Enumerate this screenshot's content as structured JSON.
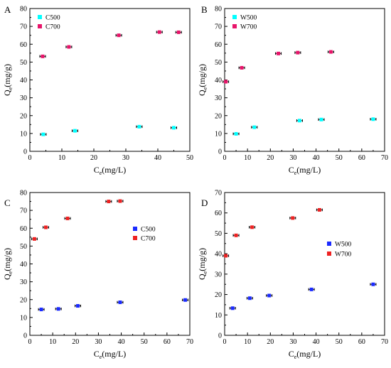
{
  "chart_data": [
    {
      "type": "scatter",
      "panel_label": "A",
      "xlabel_main": "C",
      "xlabel_sub": "e",
      "xlabel_unit": "(mg/L)",
      "ylabel_main": "Q",
      "ylabel_sub": "e",
      "ylabel_unit": "(mg/g)",
      "xlim": [
        0,
        50
      ],
      "ylim": [
        0,
        80
      ],
      "xticks": [
        0,
        10,
        20,
        30,
        40,
        50
      ],
      "yticks": [
        0,
        10,
        20,
        30,
        40,
        50,
        60,
        70,
        80
      ],
      "legend_position": "top-left",
      "series": [
        {
          "name": "C500",
          "color": "#00ffff",
          "x": [
            4.2,
            14.1,
            34.2,
            45.0
          ],
          "y": [
            9.5,
            11.5,
            13.8,
            13.2
          ]
        },
        {
          "name": "C700",
          "color": "#e8146a",
          "x": [
            4.0,
            12.2,
            27.8,
            40.5,
            46.5
          ],
          "y": [
            53.2,
            58.5,
            65.0,
            66.8,
            66.7
          ]
        }
      ]
    },
    {
      "type": "scatter",
      "panel_label": "B",
      "xlabel_main": "C",
      "xlabel_sub": "e",
      "xlabel_unit": "(mg/L)",
      "ylabel_main": "Q",
      "ylabel_sub": "e",
      "ylabel_unit": "(mg/g)",
      "xlim": [
        0,
        70
      ],
      "ylim": [
        0,
        80
      ],
      "xticks": [
        0,
        10,
        20,
        30,
        40,
        50,
        60,
        70
      ],
      "yticks": [
        0,
        10,
        20,
        30,
        40,
        50,
        60,
        70,
        80
      ],
      "legend_position": "top-left",
      "series": [
        {
          "name": "W500",
          "color": "#00ffff",
          "x": [
            5.0,
            13.0,
            32.8,
            42.3,
            65.0
          ],
          "y": [
            9.8,
            13.5,
            17.2,
            17.8,
            18.0
          ]
        },
        {
          "name": "W700",
          "color": "#e8146a",
          "x": [
            0.5,
            7.5,
            23.5,
            32.0,
            46.5
          ],
          "y": [
            39.0,
            46.8,
            54.8,
            55.3,
            55.7
          ]
        }
      ]
    },
    {
      "type": "scatter",
      "panel_label": "C",
      "xlabel_main": "C",
      "xlabel_sub": "e",
      "xlabel_unit": "(mg/L)",
      "ylabel_main": "Q",
      "ylabel_sub": "e",
      "ylabel_unit": "(mg/g)",
      "xlim": [
        0,
        70
      ],
      "ylim": [
        0,
        80
      ],
      "xticks": [
        0,
        10,
        20,
        30,
        40,
        50,
        60,
        70
      ],
      "yticks": [
        0,
        10,
        20,
        30,
        40,
        50,
        60,
        70,
        80
      ],
      "legend_position": "middle-right",
      "series": [
        {
          "name": "C500",
          "color": "#1b2bff",
          "x": [
            5.0,
            12.5,
            21.0,
            39.5,
            68.0
          ],
          "y": [
            14.5,
            14.8,
            16.5,
            18.5,
            19.8
          ]
        },
        {
          "name": "C700",
          "color": "#ee2222",
          "x": [
            2.0,
            7.0,
            16.5,
            34.5,
            39.5
          ],
          "y": [
            54.0,
            60.5,
            65.5,
            75.0,
            75.2
          ]
        }
      ]
    },
    {
      "type": "scatter",
      "panel_label": "D",
      "xlabel_main": "C",
      "xlabel_sub": "e",
      "xlabel_unit": "(mg/L)",
      "ylabel_main": "Q",
      "ylabel_sub": "e",
      "ylabel_unit": "(mg/g)",
      "xlim": [
        0,
        70
      ],
      "ylim": [
        0,
        70
      ],
      "xticks": [
        0,
        10,
        20,
        30,
        40,
        50,
        60,
        70
      ],
      "yticks": [
        0,
        10,
        20,
        30,
        40,
        50,
        60,
        70
      ],
      "legend_position": "middle-right",
      "series": [
        {
          "name": "W500",
          "color": "#1b2bff",
          "x": [
            3.5,
            11.0,
            19.5,
            38.0,
            65.0
          ],
          "y": [
            13.3,
            18.2,
            19.5,
            22.5,
            25.0
          ]
        },
        {
          "name": "W700",
          "color": "#ee2222",
          "x": [
            0.5,
            5.0,
            12.0,
            29.8,
            41.5
          ],
          "y": [
            39.0,
            49.0,
            53.0,
            57.5,
            61.5
          ]
        }
      ]
    }
  ]
}
